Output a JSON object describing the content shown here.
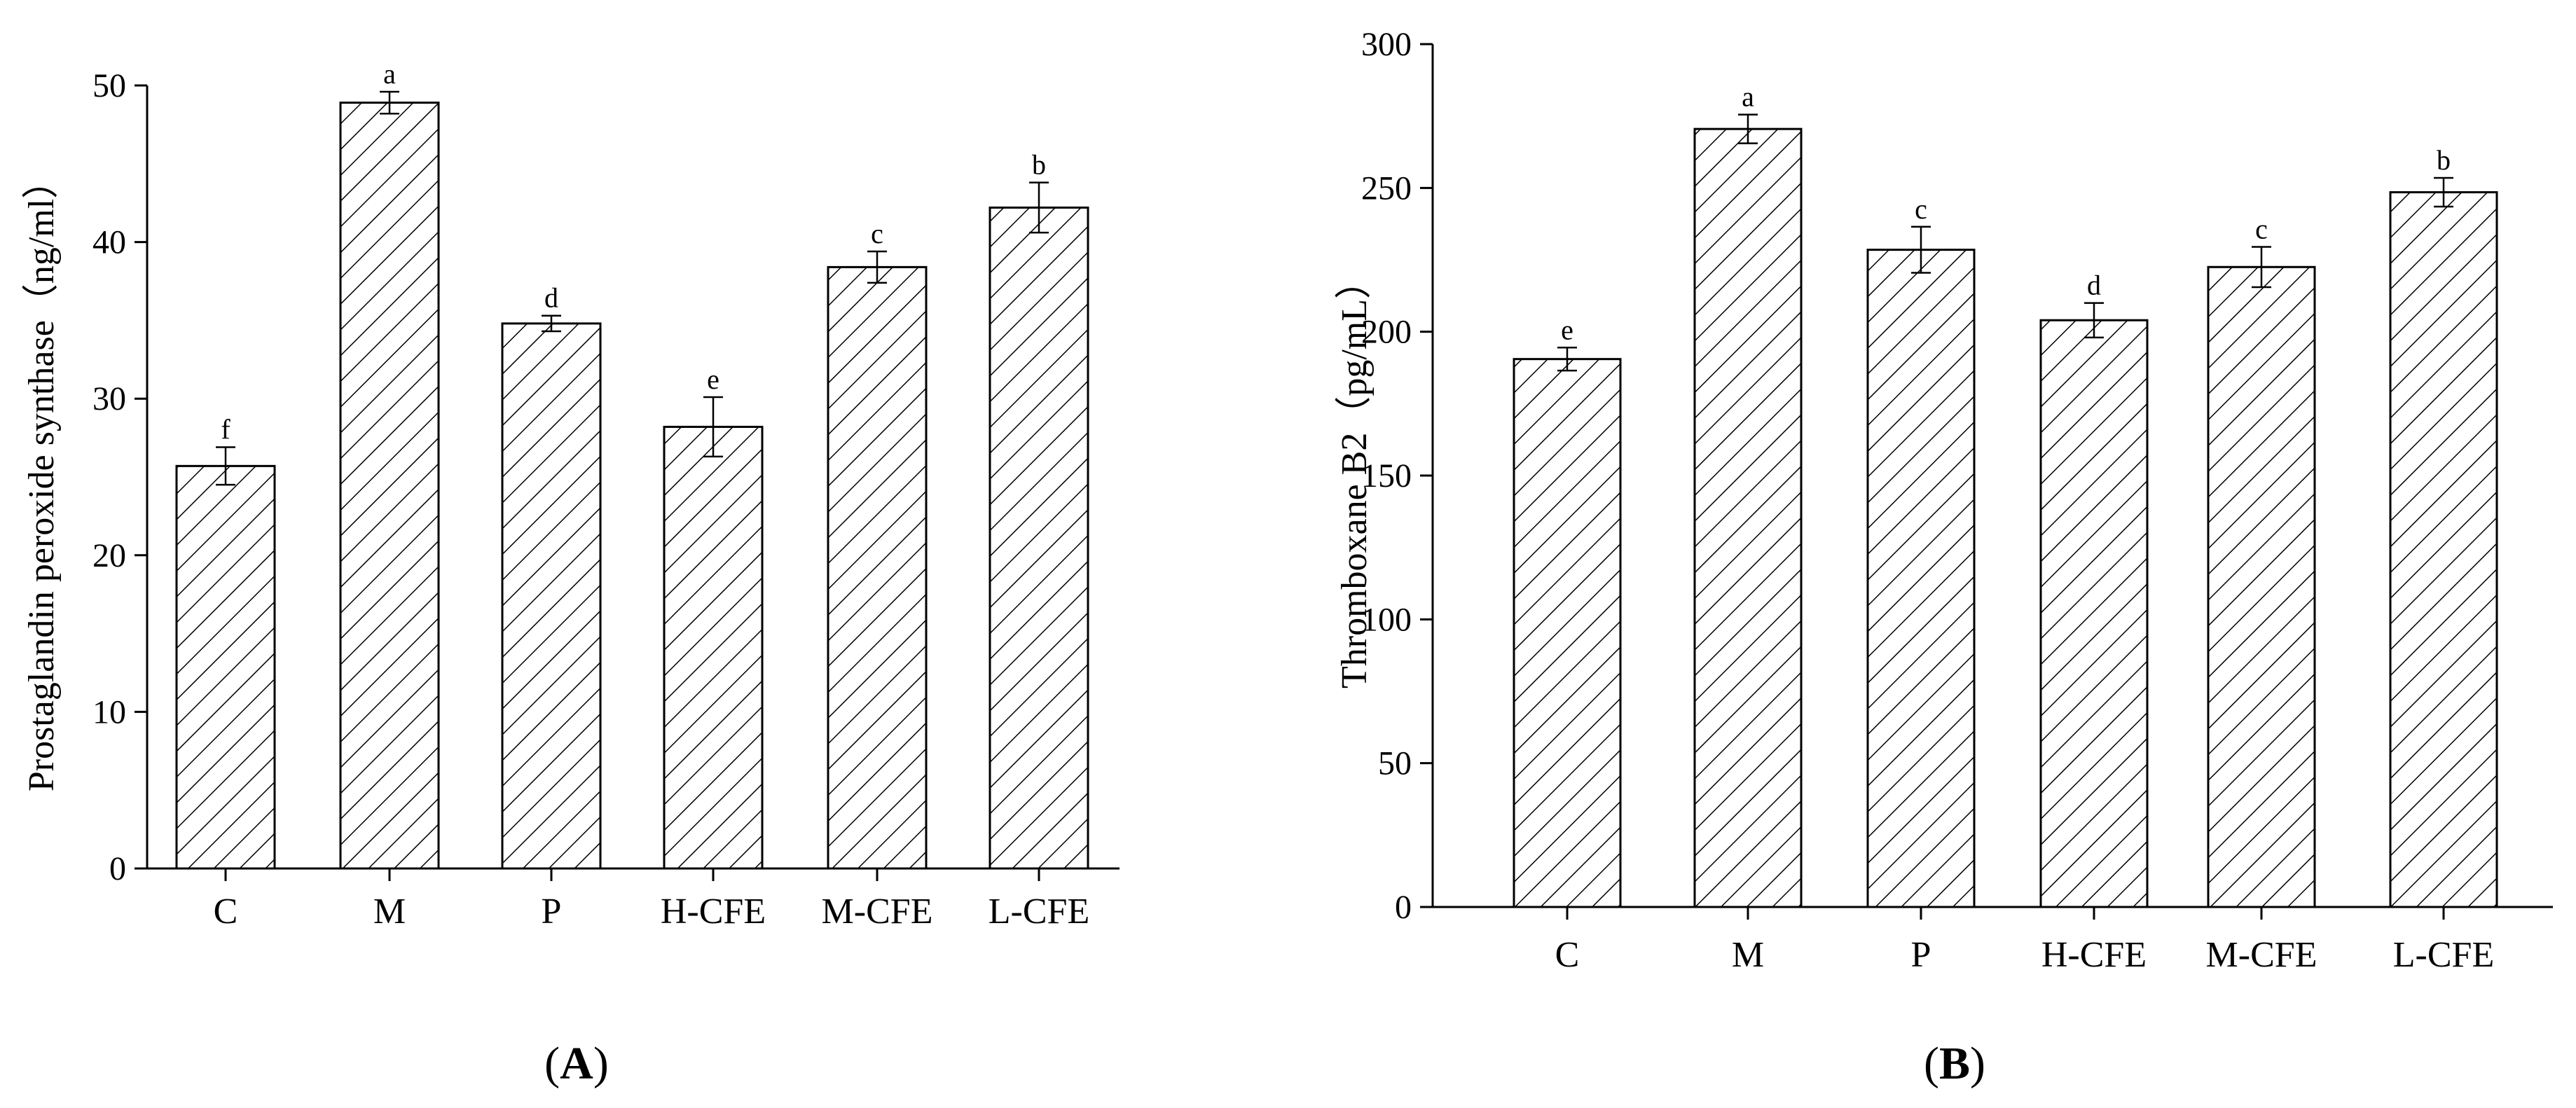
{
  "chart_data": [
    {
      "type": "bar",
      "panel": "(A)",
      "panel_letter": "A",
      "categories": [
        "C",
        "M",
        "P",
        "H-CFE",
        "M-CFE",
        "L-CFE"
      ],
      "values": [
        25.7,
        48.9,
        34.8,
        28.2,
        38.4,
        42.2
      ],
      "errors": [
        1.2,
        0.7,
        0.5,
        1.9,
        1.0,
        1.6
      ],
      "significance": [
        "f",
        "a",
        "d",
        "e",
        "c",
        "b"
      ],
      "ylabel": "Prostaglandin peroxide synthase（ng/ml）",
      "xlabel": "",
      "ylim": [
        0,
        50
      ],
      "yticks": [
        0,
        10,
        20,
        30,
        40,
        50
      ],
      "fill": "hatched diagonal",
      "bar_color": "#ffffff",
      "line_color": "#000000",
      "grid": false,
      "legend": "none"
    },
    {
      "type": "bar",
      "panel": "(B)",
      "panel_letter": "B",
      "categories": [
        "C",
        "M",
        "P",
        "H-CFE",
        "M-CFE",
        "L-CFE"
      ],
      "values": [
        190.5,
        270.5,
        228.5,
        204.0,
        222.5,
        248.5
      ],
      "errors": [
        4.0,
        5.0,
        8.0,
        6.0,
        7.0,
        5.0
      ],
      "significance": [
        "e",
        "a",
        "c",
        "d",
        "c",
        "b"
      ],
      "ylabel": "Thromboxane B2（pg/mL）",
      "xlabel": "",
      "ylim": [
        0,
        300
      ],
      "yticks": [
        0,
        50,
        100,
        150,
        200,
        250,
        300
      ],
      "fill": "hatched diagonal",
      "bar_color": "#ffffff",
      "line_color": "#000000",
      "grid": false,
      "legend": "none"
    }
  ]
}
